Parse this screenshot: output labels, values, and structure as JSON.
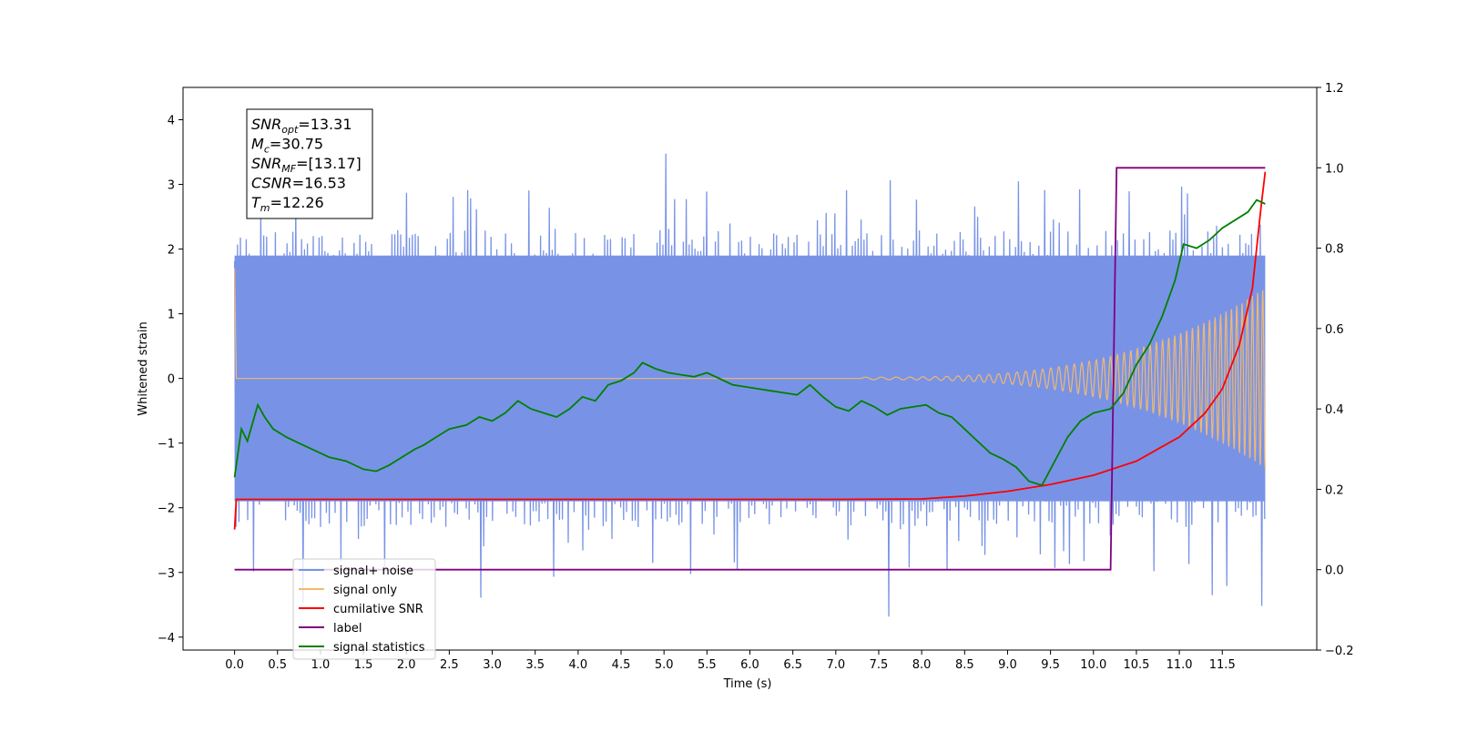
{
  "chart_data": {
    "type": "line",
    "title": "",
    "xlabel": "Time (s)",
    "ylabel": "Whitened strain",
    "xlim": [
      -0.6,
      12.6
    ],
    "ylim": [
      -4.2,
      4.5
    ],
    "y2lim": [
      -0.2,
      1.2
    ],
    "x_ticks": [
      0.0,
      0.5,
      1.0,
      1.5,
      2.0,
      2.5,
      3.0,
      3.5,
      4.0,
      4.5,
      5.0,
      5.5,
      6.0,
      6.5,
      7.0,
      7.5,
      8.0,
      8.5,
      9.0,
      9.5,
      10.0,
      10.5,
      11.0,
      11.5
    ],
    "x_tick_labels": [
      "0.0",
      "0.5",
      "1.0",
      "1.5",
      "2.0",
      "2.5",
      "3.0",
      "3.5",
      "4.0",
      "4.5",
      "5.0",
      "5.5",
      "6.0",
      "6.5",
      "7.0",
      "7.5",
      "8.0",
      "8.5",
      "9.0",
      "9.5",
      "10.0",
      "10.5",
      "11.0",
      "11.5"
    ],
    "y_ticks": [
      -4,
      -3,
      -2,
      -1,
      0,
      1,
      2,
      3,
      4
    ],
    "y_tick_labels": [
      "−4",
      "−3",
      "−2",
      "−1",
      "0",
      "1",
      "2",
      "3",
      "4"
    ],
    "y2_ticks": [
      -0.2,
      0.0,
      0.2,
      0.4,
      0.6,
      0.8,
      1.0,
      1.2
    ],
    "y2_tick_labels": [
      "−0.2",
      "0.0",
      "0.2",
      "0.4",
      "0.6",
      "0.8",
      "1.0",
      "1.2"
    ],
    "grid": false,
    "legend_position": "lower-left",
    "info_box": {
      "lines": [
        {
          "sym": "SNR",
          "sub": "opt",
          "value": "=13.31"
        },
        {
          "sym": "M",
          "sub": "c",
          "value": "=30.75"
        },
        {
          "sym": "SNR",
          "sub": "MF",
          "value": "=[13.17]"
        },
        {
          "sym": "CSNR",
          "sub": "",
          "value": "=16.53"
        },
        {
          "sym": "T",
          "sub": "m",
          "value": "=12.26"
        }
      ]
    },
    "series": [
      {
        "name": "signal+ noise",
        "axis": "left",
        "color": "#7893e6",
        "noise_envelope": {
          "x": [
            0.0,
            12.0
          ],
          "band_low": -1.9,
          "band_high": 1.9,
          "spike_max": 3.5,
          "spike_min": -3.85
        }
      },
      {
        "name": "signal only",
        "axis": "left",
        "color": "#f5b96b",
        "chirp": {
          "start": 7.3,
          "end": 12.0,
          "amp_start": 0.02,
          "amp_end": 1.4,
          "initial_transient": 1.7
        }
      },
      {
        "name": "cumilative SNR",
        "axis": "right",
        "color": "#ff0000",
        "x": [
          0.0,
          0.02,
          1.0,
          3.0,
          5.0,
          7.0,
          8.0,
          8.5,
          9.0,
          9.5,
          10.0,
          10.5,
          11.0,
          11.3,
          11.5,
          11.7,
          11.85,
          11.95,
          12.0
        ],
        "values": [
          0.1,
          0.175,
          0.175,
          0.175,
          0.175,
          0.175,
          0.176,
          0.183,
          0.195,
          0.212,
          0.235,
          0.27,
          0.33,
          0.39,
          0.45,
          0.56,
          0.7,
          0.9,
          0.99
        ]
      },
      {
        "name": "label",
        "axis": "right",
        "color": "#800080",
        "x": [
          0.0,
          10.2,
          10.27,
          12.0
        ],
        "values": [
          0.0,
          0.0,
          1.0,
          1.0
        ]
      },
      {
        "name": "signal statistics",
        "axis": "right",
        "color": "#008000",
        "x": [
          0.0,
          0.08,
          0.15,
          0.27,
          0.35,
          0.45,
          0.6,
          0.8,
          1.0,
          1.1,
          1.3,
          1.5,
          1.65,
          1.8,
          1.95,
          2.1,
          2.2,
          2.35,
          2.5,
          2.7,
          2.85,
          3.0,
          3.15,
          3.3,
          3.45,
          3.6,
          3.75,
          3.9,
          4.05,
          4.2,
          4.35,
          4.5,
          4.65,
          4.75,
          4.9,
          5.05,
          5.2,
          5.35,
          5.5,
          5.65,
          5.8,
          5.95,
          6.1,
          6.25,
          6.4,
          6.55,
          6.7,
          6.85,
          7.0,
          7.15,
          7.3,
          7.45,
          7.6,
          7.75,
          7.9,
          8.05,
          8.2,
          8.35,
          8.5,
          8.65,
          8.8,
          8.95,
          9.1,
          9.25,
          9.4,
          9.55,
          9.7,
          9.85,
          10.0,
          10.2,
          10.35,
          10.5,
          10.65,
          10.8,
          10.95,
          11.05,
          11.2,
          11.35,
          11.5,
          11.65,
          11.8,
          11.9,
          12.0
        ],
        "values": [
          0.23,
          0.35,
          0.32,
          0.41,
          0.38,
          0.35,
          0.33,
          0.31,
          0.29,
          0.28,
          0.27,
          0.25,
          0.245,
          0.26,
          0.28,
          0.3,
          0.31,
          0.33,
          0.35,
          0.36,
          0.38,
          0.37,
          0.39,
          0.42,
          0.4,
          0.39,
          0.38,
          0.4,
          0.43,
          0.42,
          0.46,
          0.47,
          0.49,
          0.515,
          0.5,
          0.49,
          0.485,
          0.48,
          0.49,
          0.475,
          0.46,
          0.455,
          0.45,
          0.445,
          0.44,
          0.435,
          0.46,
          0.43,
          0.405,
          0.395,
          0.42,
          0.405,
          0.385,
          0.4,
          0.405,
          0.41,
          0.39,
          0.38,
          0.35,
          0.32,
          0.29,
          0.275,
          0.255,
          0.22,
          0.21,
          0.27,
          0.33,
          0.37,
          0.39,
          0.4,
          0.44,
          0.51,
          0.56,
          0.63,
          0.72,
          0.81,
          0.8,
          0.82,
          0.85,
          0.87,
          0.89,
          0.92,
          0.91
        ]
      }
    ]
  }
}
